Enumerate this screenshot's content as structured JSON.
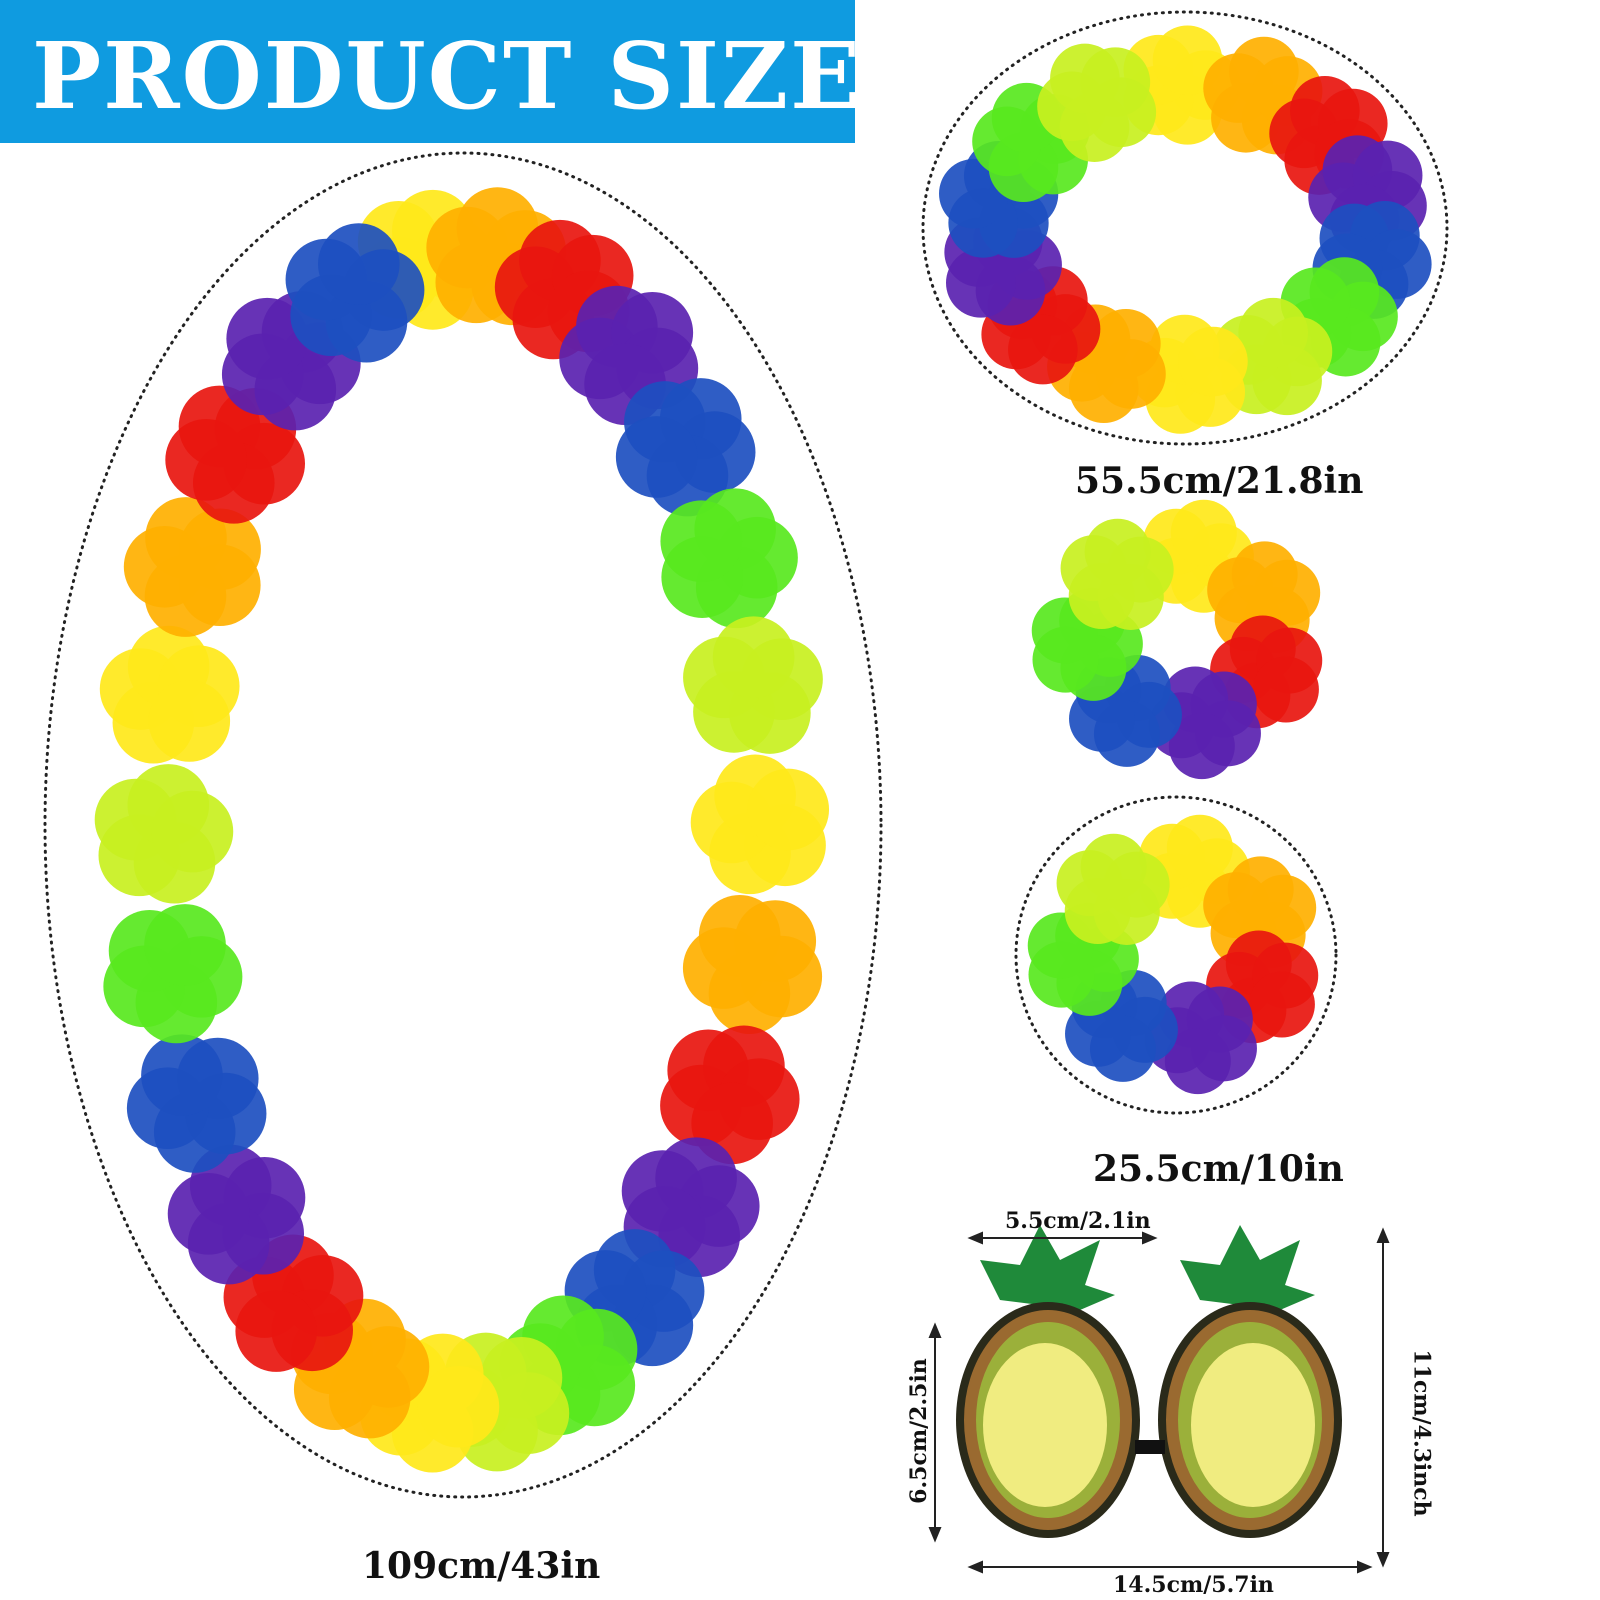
{
  "banner": {
    "title": "PRODUCT SIZE",
    "color": "#0f9be0"
  },
  "items": {
    "necklace": {
      "size": "109cm/43in"
    },
    "headband": {
      "size": "55.5cm/21.8in"
    },
    "wristband": {
      "size": "25.5cm/10in"
    },
    "glasses": {
      "lens_width": "5.5cm/2.1in",
      "lens_height": "6.5cm/2.5in",
      "total_height": "11cm/4.3inch",
      "total_width": "14.5cm/5.7in"
    }
  },
  "flower_colors": [
    "#ffe81a",
    "#ffb000",
    "#e8160f",
    "#5a22b0",
    "#1d4fc0",
    "#58e81e",
    "#c8f020"
  ]
}
